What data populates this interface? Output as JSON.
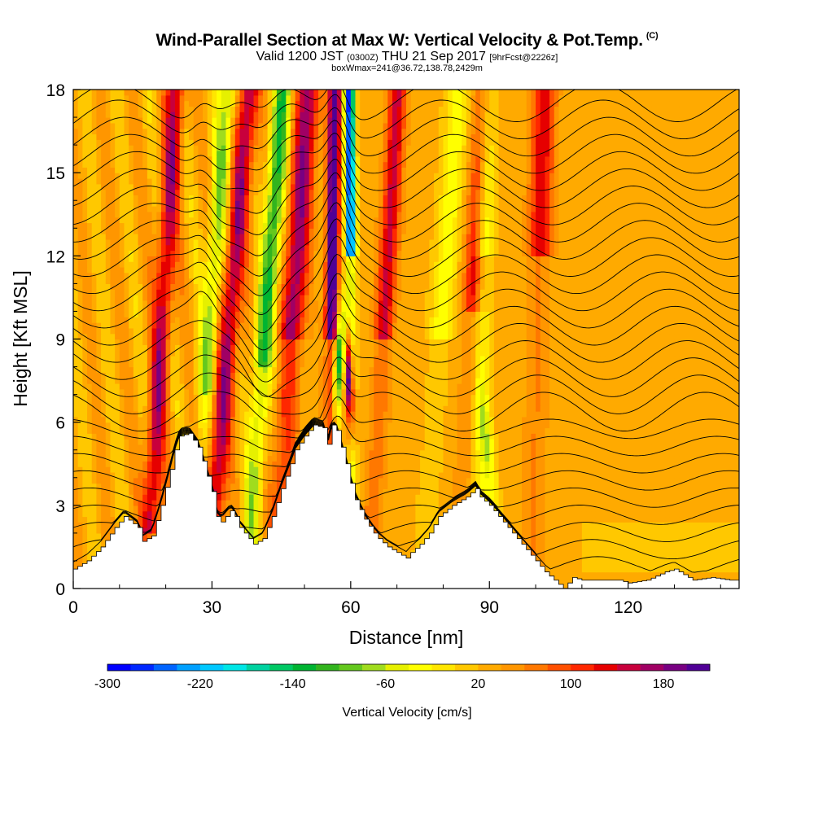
{
  "header": {
    "title": "Wind-Parallel Section at Max W: Vertical Velocity & Pot.Temp.",
    "copyright": "(C)",
    "subtitle_pre": "Valid 1200 JST",
    "subtitle_utc": "(0300Z)",
    "subtitle_date": "THU 21 Sep 2017",
    "subtitle_fcst": "[9hrFcst@2226z]",
    "subtitle2": "boxWmax=241@36.72,138.78,2429m"
  },
  "chart_data": {
    "type": "heatmap",
    "xlabel": "Distance [nm]",
    "ylabel": "Height [Kft MSL]",
    "xlim": [
      0,
      144
    ],
    "ylim": [
      0,
      18
    ],
    "x_ticks": [
      0,
      30,
      60,
      90,
      120
    ],
    "y_ticks": [
      0,
      3,
      6,
      9,
      12,
      15,
      18
    ],
    "colorbar": {
      "label": "Vertical Velocity [cm/s]",
      "ticks": [
        -300,
        -220,
        -140,
        -60,
        20,
        100,
        180
      ],
      "range": [
        -300,
        220
      ],
      "colors": [
        "#0000ff",
        "#0028ff",
        "#0064ff",
        "#00a0ff",
        "#00c8ff",
        "#00e6e6",
        "#00d2a0",
        "#00c864",
        "#00b432",
        "#32b41e",
        "#64c81e",
        "#a0dc1e",
        "#e6f000",
        "#ffff00",
        "#ffe600",
        "#ffc800",
        "#ffaa00",
        "#ff9600",
        "#ff7800",
        "#ff5000",
        "#ff2800",
        "#e60000",
        "#c8003c",
        "#a00064",
        "#780082",
        "#500096"
      ]
    },
    "terrain_kft": [
      [
        0,
        0.7
      ],
      [
        3,
        1.0
      ],
      [
        6,
        1.5
      ],
      [
        9,
        2.2
      ],
      [
        11,
        2.6
      ],
      [
        14,
        2.2
      ],
      [
        15,
        1.7
      ],
      [
        17,
        1.9
      ],
      [
        19,
        3.0
      ],
      [
        21,
        4.3
      ],
      [
        22,
        5.0
      ],
      [
        23,
        5.5
      ],
      [
        25,
        5.6
      ],
      [
        27,
        5.1
      ],
      [
        28,
        4.6
      ],
      [
        30,
        3.5
      ],
      [
        31,
        2.6
      ],
      [
        32,
        2.4
      ],
      [
        34,
        2.8
      ],
      [
        35,
        2.6
      ],
      [
        36,
        2.2
      ],
      [
        37,
        2.0
      ],
      [
        39,
        1.6
      ],
      [
        41,
        1.8
      ],
      [
        43,
        2.6
      ],
      [
        45,
        3.6
      ],
      [
        47,
        4.5
      ],
      [
        48,
        5.0
      ],
      [
        50,
        5.5
      ],
      [
        52,
        5.9
      ],
      [
        54,
        5.8
      ],
      [
        55,
        5.2
      ],
      [
        56,
        5.9
      ],
      [
        57,
        5.7
      ],
      [
        58,
        5.1
      ],
      [
        59,
        4.5
      ],
      [
        60,
        3.8
      ],
      [
        61,
        3.2
      ],
      [
        63,
        2.5
      ],
      [
        65,
        2.0
      ],
      [
        66,
        1.8
      ],
      [
        68,
        1.5
      ],
      [
        70,
        1.3
      ],
      [
        72,
        1.1
      ],
      [
        73,
        1.3
      ],
      [
        75,
        1.6
      ],
      [
        77,
        2.0
      ],
      [
        79,
        2.6
      ],
      [
        82,
        3.0
      ],
      [
        85,
        3.3
      ],
      [
        87,
        3.6
      ],
      [
        88,
        3.3
      ],
      [
        90,
        3.0
      ],
      [
        92,
        2.6
      ],
      [
        94,
        2.2
      ],
      [
        96,
        1.8
      ],
      [
        98,
        1.4
      ],
      [
        100,
        1.0
      ],
      [
        102,
        0.6
      ],
      [
        104,
        0.3
      ],
      [
        106,
        0.0
      ],
      [
        108,
        0.4
      ],
      [
        110,
        0.3
      ],
      [
        112,
        0.3
      ],
      [
        118,
        0.3
      ],
      [
        120,
        0.2
      ],
      [
        124,
        0.3
      ],
      [
        128,
        0.6
      ],
      [
        130,
        0.7
      ],
      [
        132,
        0.5
      ],
      [
        134,
        0.3
      ],
      [
        138,
        0.4
      ],
      [
        142,
        0.3
      ],
      [
        144,
        0.3
      ]
    ]
  }
}
